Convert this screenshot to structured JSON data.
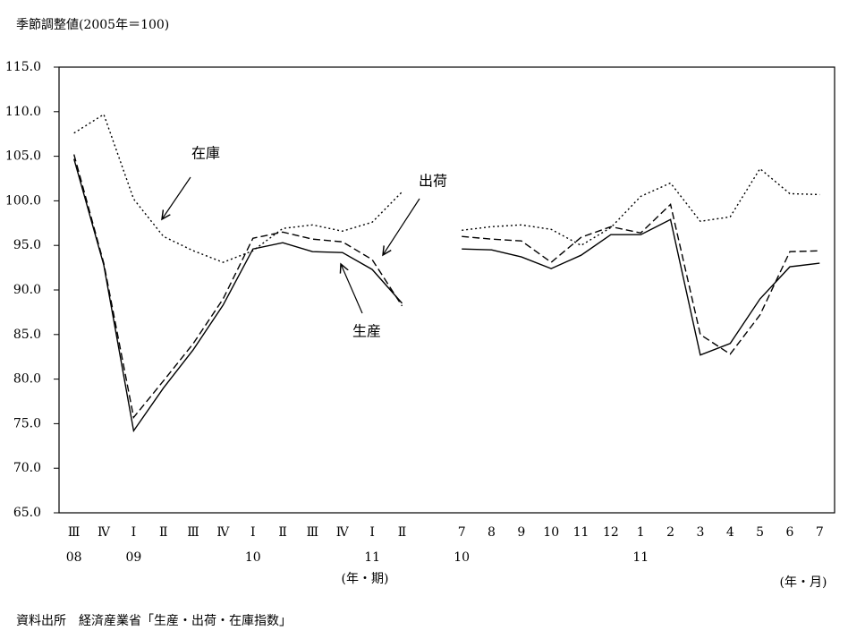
{
  "chart_data": {
    "type": "line",
    "title": "季節調整値(2005年＝100)",
    "categories": [
      "Ⅲ",
      "Ⅳ",
      "Ⅰ",
      "Ⅱ",
      "Ⅲ",
      "Ⅳ",
      "Ⅰ",
      "Ⅱ",
      "Ⅲ",
      "Ⅳ",
      "Ⅰ",
      "Ⅱ",
      null,
      "7",
      "8",
      "9",
      "10",
      "11",
      "12",
      "1",
      "2",
      "3",
      "4",
      "5",
      "6",
      "7"
    ],
    "year_labels": [
      "08",
      null,
      "09",
      null,
      null,
      null,
      "10",
      null,
      null,
      null,
      "11",
      null,
      null,
      "10",
      null,
      null,
      null,
      null,
      null,
      "11",
      null,
      null,
      null,
      null,
      null,
      null
    ],
    "x_units": [
      "(年・期)",
      "(年・月)"
    ],
    "series": [
      {
        "name": "生産",
        "color": "#000000",
        "line_style": "solid",
        "values": [
          104.7,
          92.8,
          74.2,
          79.0,
          83.3,
          88.3,
          94.6,
          95.3,
          94.3,
          94.2,
          92.3,
          88.5,
          null,
          94.6,
          94.5,
          93.7,
          92.4,
          93.9,
          96.2,
          96.2,
          97.9,
          82.7,
          84.0,
          89.0,
          92.6,
          93.0
        ]
      },
      {
        "name": "出荷",
        "color": "#000000",
        "line_style": "dashed",
        "values": [
          105.2,
          93.0,
          75.7,
          79.8,
          84.0,
          89.0,
          95.8,
          96.5,
          95.7,
          95.4,
          93.4,
          88.2,
          null,
          96.0,
          95.7,
          95.5,
          93.1,
          95.9,
          97.1,
          96.4,
          99.6,
          85.0,
          82.8,
          87.2,
          94.3,
          94.4
        ]
      },
      {
        "name": "在庫",
        "color": "#000000",
        "line_style": "dotted",
        "values": [
          107.6,
          109.7,
          100.2,
          96.0,
          94.4,
          93.1,
          94.4,
          96.9,
          97.3,
          96.6,
          97.6,
          101.0,
          null,
          96.7,
          97.1,
          97.3,
          96.8,
          95.0,
          97.0,
          100.5,
          102.0,
          97.7,
          98.2,
          103.6,
          100.8,
          100.7
        ]
      }
    ],
    "ylim": [
      65,
      115
    ],
    "yticks": [
      {
        "value": 65,
        "label": "65.0"
      },
      {
        "value": 70,
        "label": "70.0"
      },
      {
        "value": 75,
        "label": "75.0"
      },
      {
        "value": 80,
        "label": "80.0"
      },
      {
        "value": 85,
        "label": "85.0"
      },
      {
        "value": 90,
        "label": "90.0"
      },
      {
        "value": 95,
        "label": "95.0"
      },
      {
        "value": 100,
        "label": "100.0"
      },
      {
        "value": 105,
        "label": "105.0"
      },
      {
        "value": 110,
        "label": "110.0"
      },
      {
        "value": 115,
        "label": "115.0"
      }
    ],
    "grid": false,
    "source": "資料出所　経済産業省「生産・出荷・在庫指数」"
  }
}
